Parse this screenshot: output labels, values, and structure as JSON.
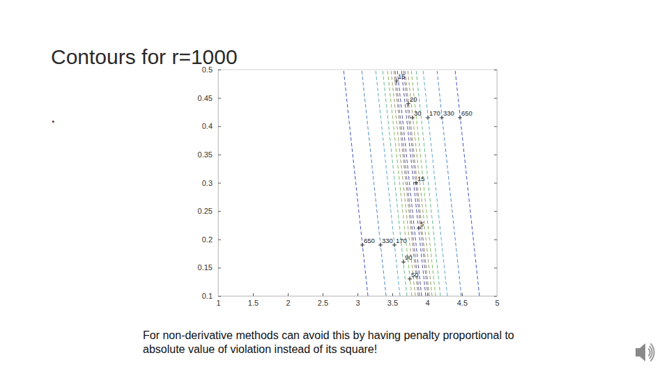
{
  "chart_data": {
    "type": "contour",
    "title": "Contours for r=1000",
    "annotations": [
      ".",
      "For non-derivative methods can avoid this by having penalty proportional to absolute value of violation instead of its square!"
    ],
    "xlim": [
      1,
      5
    ],
    "ylim": [
      0.1,
      0.5
    ],
    "xticks": [
      1,
      1.5,
      2,
      2.5,
      3,
      3.5,
      4,
      4.5,
      5
    ],
    "yticks": [
      0.1,
      0.15,
      0.2,
      0.25,
      0.3,
      0.35,
      0.4,
      0.45,
      0.5
    ],
    "line_style": "dashed",
    "contours": [
      {
        "level": 650,
        "color": "#3b55c4",
        "y": [
          0.1,
          0.3,
          0.5
        ],
        "x_left": [
          3.15,
          2.975,
          2.8
        ],
        "x_right": [
          4.75,
          4.575,
          4.4
        ],
        "label_x": [
          3.07,
          4.47
        ],
        "label_y": [
          0.19,
          0.415
        ]
      },
      {
        "level": 330,
        "color": "#4f86c6",
        "y": [
          0.1,
          0.3,
          0.5
        ],
        "x_left": [
          3.41,
          3.235,
          3.06
        ],
        "x_right": [
          4.49,
          4.315,
          4.14
        ],
        "label_x": [
          3.33,
          4.21
        ],
        "label_y": [
          0.19,
          0.415
        ]
      },
      {
        "level": 170,
        "color": "#5fa8c8",
        "y": [
          0.1,
          0.3,
          0.5
        ],
        "x_left": [
          3.61,
          3.435,
          3.26
        ],
        "x_right": [
          4.29,
          4.115,
          3.94
        ],
        "label_x": [
          3.53,
          4.01
        ],
        "label_y": [
          0.19,
          0.415
        ]
      },
      {
        "level": 90,
        "color": "#62b88e",
        "y": [
          0.1,
          0.3,
          0.5
        ],
        "x_left": [
          3.71,
          3.535,
          3.36
        ],
        "x_right": [
          4.19,
          4.015,
          3.84
        ],
        "label_x": [
          3.66
        ],
        "label_y": [
          0.16
        ]
      },
      {
        "level": 50,
        "color": "#7dbb5a",
        "y": [
          0.1,
          0.3,
          0.5
        ],
        "x_left": [
          3.78,
          3.605,
          3.43
        ],
        "x_right": [
          4.12,
          3.945,
          3.77
        ],
        "label_x": [
          3.75
        ],
        "label_y": [
          0.13
        ]
      },
      {
        "level": 30,
        "color": "#9a9a6a",
        "y": [
          0.1,
          0.3,
          0.5
        ],
        "x_left": [
          3.83,
          3.655,
          3.48
        ],
        "x_right": [
          4.07,
          3.895,
          3.72
        ],
        "label_x": [
          3.79
        ],
        "label_y": [
          0.415
        ]
      },
      {
        "level": 20,
        "color": "#8a7f70",
        "y": [
          0.1,
          0.3,
          0.5
        ],
        "x_left": [
          3.87,
          3.695,
          3.52
        ],
        "x_right": [
          4.03,
          3.855,
          3.68
        ],
        "label_x": [
          3.73
        ],
        "label_y": [
          0.44
        ]
      },
      {
        "level": 15,
        "color": "#6e6e8e",
        "y": [
          0.1,
          0.3,
          0.5
        ],
        "x_left": [
          3.89,
          3.715,
          3.54
        ],
        "x_right": [
          4.01,
          3.835,
          3.66
        ],
        "label_x": [
          3.56,
          3.84
        ],
        "label_y": [
          0.48,
          0.3
        ]
      },
      {
        "level": 5,
        "color": "#4f4f9f",
        "y": [
          0.1,
          0.3,
          0.5
        ],
        "x_left": [
          3.92,
          3.745,
          3.57
        ],
        "x_right": [
          3.98,
          3.805,
          3.63
        ],
        "label_x": [
          3.88
        ],
        "label_y": [
          0.22
        ]
      }
    ]
  }
}
